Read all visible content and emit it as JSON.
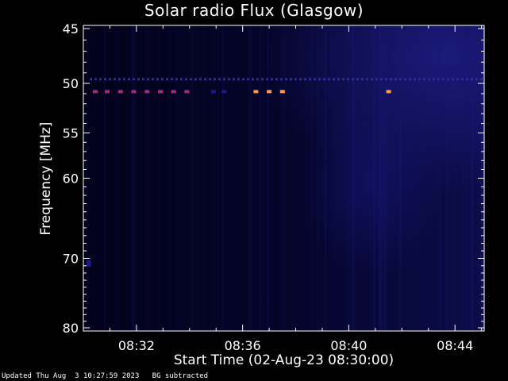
{
  "chart_data": {
    "type": "heatmap",
    "title": "Solar radio Flux (Glasgow)",
    "xlabel": "Start Time (02-Aug-23 08:30:00)",
    "ylabel": "Frequency [MHz]",
    "x_ticks": [
      "08:32",
      "08:36",
      "08:40",
      "08:44"
    ],
    "x_tick_minutes": [
      32,
      36,
      40,
      44
    ],
    "xlim_minutes": [
      30.0,
      45.1
    ],
    "y_ticks": [
      45,
      50,
      55,
      60,
      70,
      80
    ],
    "ylim": [
      45,
      80
    ],
    "y_scale": "log",
    "grid": false,
    "colors": {
      "background": "#000000",
      "low": "#05052a",
      "mid": "#1a1a8a",
      "high": "#cc2244",
      "peak": "#ff9955"
    },
    "bursts": [
      {
        "time_min": 30.45,
        "freq_mhz": 50.8,
        "level": "high"
      },
      {
        "time_min": 30.9,
        "freq_mhz": 50.8,
        "level": "high"
      },
      {
        "time_min": 31.4,
        "freq_mhz": 50.8,
        "level": "high"
      },
      {
        "time_min": 31.9,
        "freq_mhz": 50.8,
        "level": "high"
      },
      {
        "time_min": 32.4,
        "freq_mhz": 50.8,
        "level": "high"
      },
      {
        "time_min": 32.9,
        "freq_mhz": 50.8,
        "level": "high"
      },
      {
        "time_min": 33.4,
        "freq_mhz": 50.8,
        "level": "high"
      },
      {
        "time_min": 33.9,
        "freq_mhz": 50.8,
        "level": "high"
      },
      {
        "time_min": 34.9,
        "freq_mhz": 50.8,
        "level": "mid"
      },
      {
        "time_min": 35.3,
        "freq_mhz": 50.8,
        "level": "mid"
      },
      {
        "time_min": 36.5,
        "freq_mhz": 50.8,
        "level": "peak"
      },
      {
        "time_min": 37.0,
        "freq_mhz": 50.8,
        "level": "peak"
      },
      {
        "time_min": 37.5,
        "freq_mhz": 50.8,
        "level": "peak"
      },
      {
        "time_min": 41.5,
        "freq_mhz": 50.8,
        "level": "peak"
      },
      {
        "time_min": 30.2,
        "freq_mhz": 70.7,
        "level": "mid"
      }
    ],
    "interference_band_mhz": 49.6,
    "footer_updated": "Updated Thu Aug  3 10:27:59 2023",
    "footer_note": "BG subtracted"
  }
}
